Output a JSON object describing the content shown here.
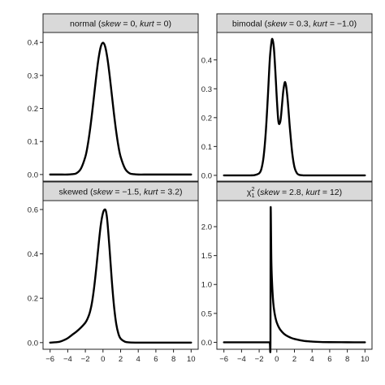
{
  "figure": {
    "background": "#ffffff",
    "panel_border_color": "#222222",
    "strip_fill": "#d9d9d9",
    "curve_color": "#000000"
  },
  "chart_data": [
    {
      "type": "line",
      "strip": {
        "prefix": "normal (",
        "skew_label": "skew",
        "eq1": " = 0, ",
        "kurt_label": "kurt",
        "eq2": " = 0)"
      },
      "xlim": [
        -6.8,
        10.8
      ],
      "ylim": [
        -0.02,
        0.43
      ],
      "xticks": [
        -6,
        -4,
        -2,
        0,
        2,
        4,
        6,
        8,
        10
      ],
      "xtick_labels": [
        "−6",
        "−4",
        "−2",
        "0",
        "2",
        "4",
        "6",
        "8",
        "10"
      ],
      "yticks": [
        0.0,
        0.1,
        0.2,
        0.3,
        0.4
      ],
      "ytick_labels": [
        "0.0",
        "0.1",
        "0.2",
        "0.3",
        "0.4"
      ],
      "show_xticks": false,
      "grid": false,
      "x": [
        -6,
        -5,
        -4,
        -3.5,
        -3,
        -2.5,
        -2,
        -1.75,
        -1.5,
        -1.25,
        -1,
        -0.75,
        -0.5,
        -0.25,
        0,
        0.25,
        0.5,
        0.75,
        1,
        1.25,
        1.5,
        1.75,
        2,
        2.5,
        3,
        3.5,
        4,
        5,
        6,
        7,
        8,
        9,
        10
      ],
      "y": [
        0.0,
        0.0,
        0.0,
        0.001,
        0.004,
        0.018,
        0.054,
        0.086,
        0.13,
        0.183,
        0.242,
        0.301,
        0.352,
        0.387,
        0.399,
        0.387,
        0.352,
        0.301,
        0.242,
        0.183,
        0.13,
        0.086,
        0.054,
        0.018,
        0.004,
        0.001,
        0.0,
        0.0,
        0.0,
        0.0,
        0.0,
        0.0,
        0.0
      ]
    },
    {
      "type": "line",
      "strip": {
        "prefix": "bimodal (",
        "skew_label": "skew",
        "eq1": " = 0.3, ",
        "kurt_label": "kurt",
        "eq2": " = −1.0)"
      },
      "xlim": [
        -6.8,
        10.8
      ],
      "ylim": [
        -0.02,
        0.495
      ],
      "xticks": [
        -6,
        -4,
        -2,
        0,
        2,
        4,
        6,
        8,
        10
      ],
      "xtick_labels": [
        "−6",
        "−4",
        "−2",
        "0",
        "2",
        "4",
        "6",
        "8",
        "10"
      ],
      "yticks": [
        0.0,
        0.1,
        0.2,
        0.3,
        0.4
      ],
      "ytick_labels": [
        "0.0",
        "0.1",
        "0.2",
        "0.3",
        "0.4"
      ],
      "show_xticks": false,
      "grid": false,
      "x": [
        -6,
        -4,
        -3,
        -2.5,
        -2,
        -1.75,
        -1.5,
        -1.25,
        -1,
        -0.85,
        -0.75,
        -0.6,
        -0.5,
        -0.35,
        -0.25,
        -0.1,
        0,
        0.15,
        0.25,
        0.4,
        0.5,
        0.65,
        0.75,
        0.9,
        1,
        1.1,
        1.25,
        1.4,
        1.5,
        1.75,
        2,
        2.25,
        2.5,
        3,
        3.5,
        4,
        6,
        8,
        10
      ],
      "y": [
        0.0,
        0.0,
        0.0,
        0.001,
        0.007,
        0.022,
        0.064,
        0.15,
        0.281,
        0.372,
        0.42,
        0.463,
        0.472,
        0.447,
        0.405,
        0.324,
        0.266,
        0.196,
        0.178,
        0.187,
        0.212,
        0.265,
        0.296,
        0.322,
        0.318,
        0.3,
        0.255,
        0.196,
        0.158,
        0.077,
        0.029,
        0.009,
        0.002,
        0.0,
        0.0,
        0.0,
        0.0,
        0.0,
        0.0
      ]
    },
    {
      "type": "line",
      "strip": {
        "prefix": "skewed (",
        "skew_label": "skew",
        "eq1": " = −1.5, ",
        "kurt_label": "kurt",
        "eq2": " = 3.2)"
      },
      "xlim": [
        -6.8,
        10.8
      ],
      "ylim": [
        -0.03,
        0.64
      ],
      "xticks": [
        -6,
        -4,
        -2,
        0,
        2,
        4,
        6,
        8,
        10
      ],
      "xtick_labels": [
        "−6",
        "−4",
        "−2",
        "0",
        "2",
        "4",
        "6",
        "8",
        "10"
      ],
      "yticks": [
        0.0,
        0.2,
        0.4,
        0.6
      ],
      "ytick_labels": [
        "0.0",
        "0.2",
        "0.4",
        "0.6"
      ],
      "show_xticks": true,
      "grid": false,
      "x": [
        -6,
        -5,
        -4.5,
        -4,
        -3.5,
        -3,
        -2.5,
        -2,
        -1.75,
        -1.5,
        -1.25,
        -1,
        -0.75,
        -0.5,
        -0.25,
        0,
        0.2,
        0.35,
        0.5,
        0.75,
        1,
        1.25,
        1.5,
        1.75,
        2,
        2.5,
        3,
        4,
        6,
        8,
        10
      ],
      "y": [
        0.0,
        0.003,
        0.01,
        0.02,
        0.035,
        0.05,
        0.068,
        0.09,
        0.108,
        0.135,
        0.18,
        0.25,
        0.34,
        0.44,
        0.53,
        0.585,
        0.6,
        0.59,
        0.545,
        0.42,
        0.28,
        0.165,
        0.085,
        0.04,
        0.018,
        0.004,
        0.001,
        0.0,
        0.0,
        0.0,
        0.0
      ]
    },
    {
      "type": "line",
      "strip": {
        "prefix": "",
        "chi": "χ",
        "sub": "1",
        "sup": "2",
        "open": " (",
        "skew_label": "skew",
        "eq1": " = 2.8, ",
        "kurt_label": "kurt",
        "eq2": " = 12)"
      },
      "xlim": [
        -6.8,
        10.8
      ],
      "ylim": [
        -0.12,
        2.45
      ],
      "xticks": [
        -6,
        -4,
        -2,
        0,
        2,
        4,
        6,
        8,
        10
      ],
      "xtick_labels": [
        "−6",
        "−4",
        "−2",
        "0",
        "2",
        "4",
        "6",
        "8",
        "10"
      ],
      "yticks": [
        0.0,
        0.5,
        1.0,
        1.5,
        2.0
      ],
      "ytick_labels": [
        "0.0",
        "0.5",
        "1.0",
        "1.5",
        "2.0"
      ],
      "show_xticks": true,
      "grid": false,
      "x": [
        -6,
        -3,
        -1,
        -0.8,
        -0.72,
        -0.7,
        -0.62,
        -0.55,
        -0.45,
        -0.35,
        -0.2,
        0,
        0.3,
        0.6,
        1,
        1.5,
        2,
        3,
        4,
        5,
        6,
        8,
        10
      ],
      "y": [
        0.0,
        0.0,
        0.0,
        0.0,
        0.0,
        2.3,
        1.42,
        1.07,
        0.78,
        0.61,
        0.46,
        0.34,
        0.24,
        0.18,
        0.125,
        0.085,
        0.058,
        0.027,
        0.013,
        0.006,
        0.003,
        0.001,
        0.0
      ]
    }
  ]
}
